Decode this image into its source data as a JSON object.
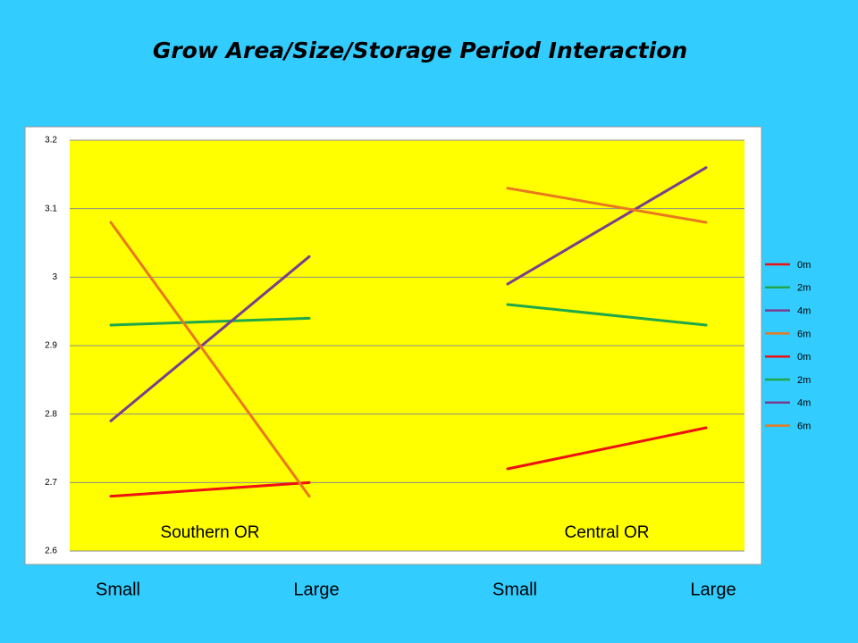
{
  "chart_data": {
    "type": "line",
    "title": "Grow Area/Size/Storage Period Interaction",
    "categories": [
      "Small",
      "Large",
      "Small",
      "Large"
    ],
    "annotations": [
      "Southern OR",
      "Central OR"
    ],
    "series": [
      {
        "name": "0m",
        "color": "#ee1111",
        "values": [
          2.68,
          2.7,
          null,
          null
        ]
      },
      {
        "name": "2m",
        "color": "#1fa84a",
        "values": [
          2.93,
          2.94,
          null,
          null
        ]
      },
      {
        "name": "4m",
        "color": "#7a3e8e",
        "values": [
          2.79,
          3.03,
          null,
          null
        ]
      },
      {
        "name": "6m",
        "color": "#e8791e",
        "values": [
          3.08,
          2.68,
          null,
          null
        ]
      },
      {
        "name": "0m",
        "color": "#ee1111",
        "values": [
          null,
          null,
          2.72,
          2.78
        ]
      },
      {
        "name": "2m",
        "color": "#1fa84a",
        "values": [
          null,
          null,
          2.96,
          2.93
        ]
      },
      {
        "name": "4m",
        "color": "#7a3e8e",
        "values": [
          null,
          null,
          2.99,
          3.16
        ]
      },
      {
        "name": "6m",
        "color": "#e8791e",
        "values": [
          null,
          null,
          3.13,
          3.08
        ]
      }
    ],
    "ylim": [
      2.6,
      3.2
    ],
    "yticks": [
      2.6,
      2.7,
      2.8,
      2.9,
      3,
      3.1,
      3.2
    ],
    "grid": true
  }
}
